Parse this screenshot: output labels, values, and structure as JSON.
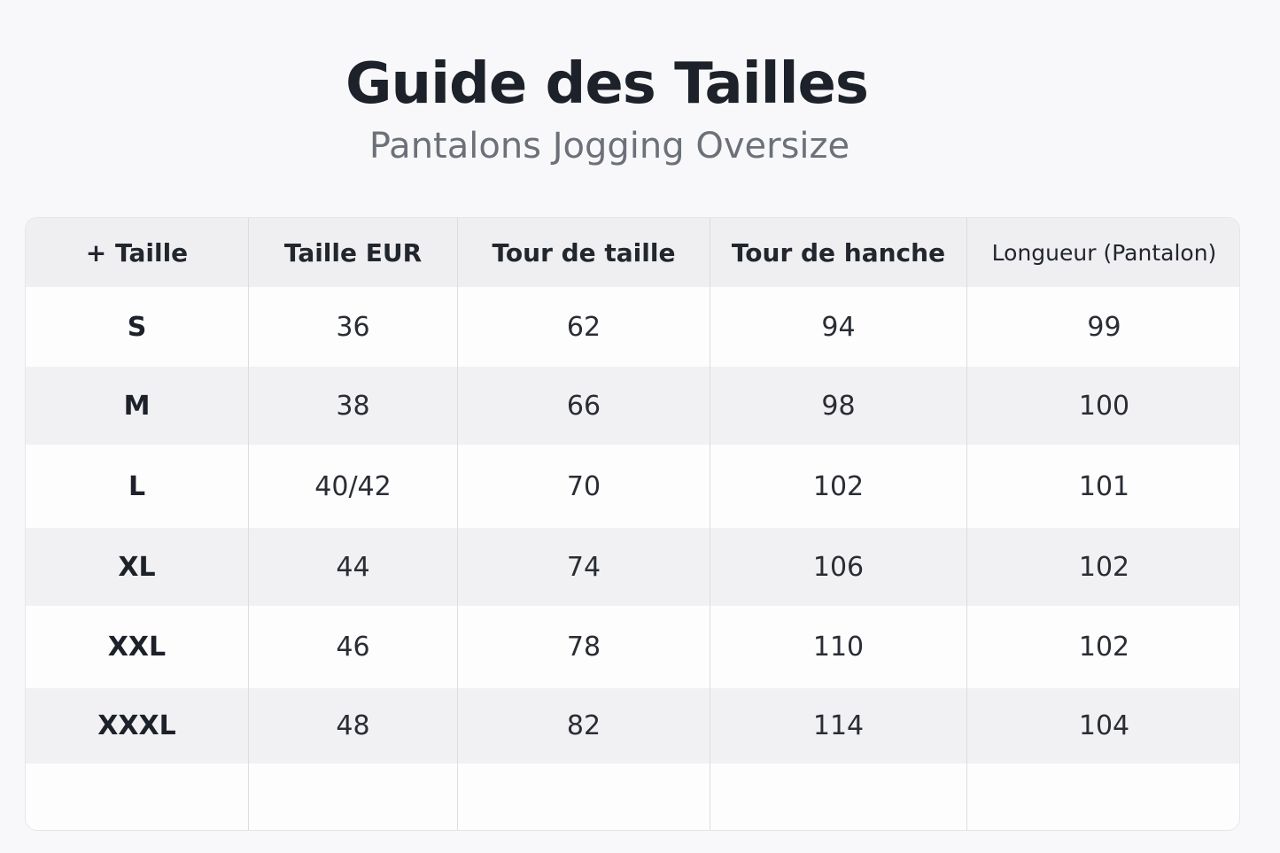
{
  "header": {
    "title": "Guide des Tailles",
    "subtitle": "Pantalons Jogging Oversize"
  },
  "table": {
    "columns": [
      "+ Taille",
      "Taille EUR",
      "Tour de taille",
      "Tour de hanche",
      "Longueur (Pantalon)"
    ],
    "rows": [
      [
        "S",
        "36",
        "62",
        "94",
        "99"
      ],
      [
        "M",
        "38",
        "66",
        "98",
        "100"
      ],
      [
        "L",
        "40/42",
        "70",
        "102",
        "101"
      ],
      [
        "XL",
        "44",
        "74",
        "106",
        "102"
      ],
      [
        "XXL",
        "46",
        "78",
        "110",
        "102"
      ],
      [
        "XXXL",
        "48",
        "82",
        "114",
        "104"
      ]
    ]
  }
}
